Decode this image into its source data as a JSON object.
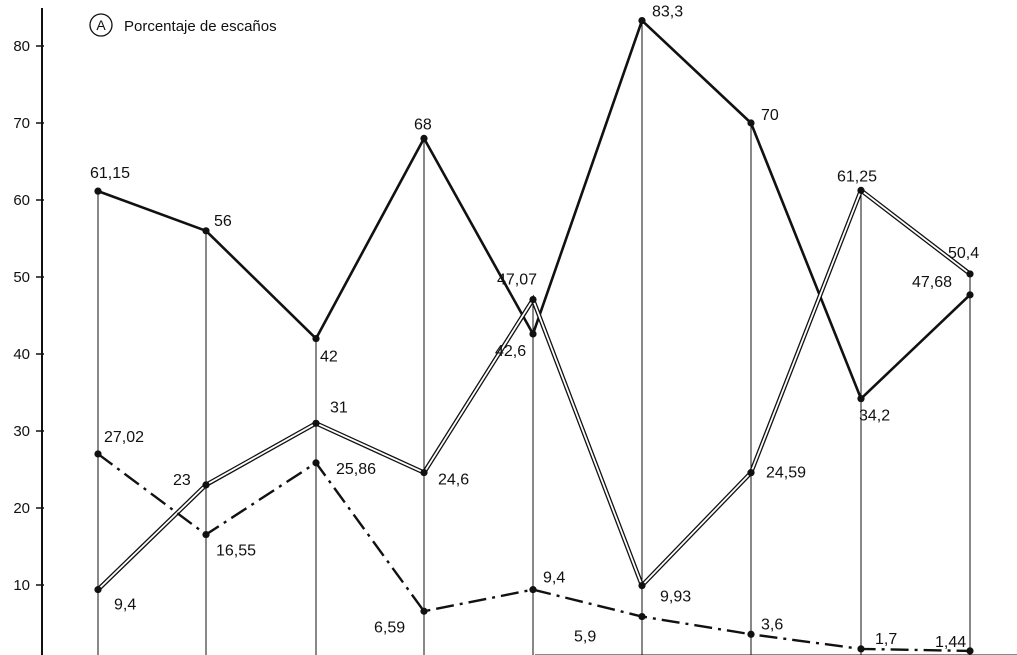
{
  "chart_data": {
    "type": "line",
    "title": "Porcentaje de escaños",
    "panel_marker": "A",
    "xlabel": "",
    "ylabel": "",
    "ylim": [
      0,
      85
    ],
    "yticks": [
      10,
      20,
      30,
      40,
      50,
      60,
      70,
      80
    ],
    "x": [
      1,
      2,
      3,
      4,
      5,
      6,
      7,
      8,
      9
    ],
    "grid": false,
    "series": [
      {
        "style": "solid-thick",
        "values": [
          61.15,
          56,
          42,
          68,
          42.6,
          83.3,
          70,
          34.2,
          47.68
        ],
        "labels": [
          "61,15",
          "56",
          "42",
          "68",
          "42,6",
          "83,3",
          "70",
          "34,2",
          "47,68"
        ]
      },
      {
        "style": "double",
        "values": [
          9.4,
          23,
          31,
          24.6,
          47.07,
          9.93,
          24.59,
          61.25,
          50.4
        ],
        "labels": [
          "9,4",
          "23",
          "31",
          "24,6",
          "47,07",
          "9,93",
          "24,59",
          "61,25",
          "50,4"
        ]
      },
      {
        "style": "dash-dot",
        "values": [
          27.02,
          16.55,
          25.86,
          6.59,
          9.4,
          5.9,
          3.6,
          1.7,
          1.44
        ],
        "labels": [
          "27,02",
          "16,55",
          "25,86",
          "6,59",
          "9,4",
          "5,9",
          "3,6",
          "1,7",
          "1,44"
        ]
      }
    ],
    "colors": {
      "ink": "#111111",
      "background": "#ffffff"
    }
  }
}
